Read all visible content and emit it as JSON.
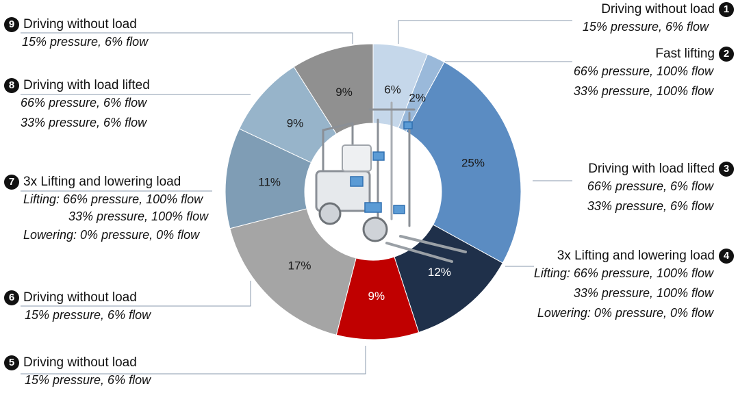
{
  "chart_data": {
    "type": "pie",
    "donut": true,
    "slices": [
      {
        "number": "1",
        "value": 6,
        "label": "6%",
        "color": "#c5d7ea"
      },
      {
        "number": "2",
        "value": 2,
        "label": "2%",
        "color": "#9ab9da"
      },
      {
        "number": "3",
        "value": 25,
        "label": "25%",
        "color": "#5b8cc2"
      },
      {
        "number": "4",
        "value": 12,
        "label": "12%",
        "color": "#1f304a"
      },
      {
        "number": "5",
        "value": 9,
        "label": "9%",
        "color": "#c00000"
      },
      {
        "number": "6",
        "value": 17,
        "label": "17%",
        "color": "#a5a5a5"
      },
      {
        "number": "7",
        "value": 11,
        "label": "11%",
        "color": "#7f9db5"
      },
      {
        "number": "8",
        "value": 9,
        "label": "9%",
        "color": "#97b4ca"
      },
      {
        "number": "9",
        "value": 9,
        "label": "9%",
        "color": "#909090"
      }
    ],
    "center_image": "forklift",
    "callouts": {
      "c1": {
        "badge": "1",
        "title": "Driving without load",
        "lines": [
          "15% pressure, 6% flow"
        ]
      },
      "c2": {
        "badge": "2",
        "title": "Fast lifting",
        "lines": [
          "66% pressure, 100% flow",
          "33% pressure, 100% flow"
        ]
      },
      "c3": {
        "badge": "3",
        "title": "Driving with load lifted",
        "lines": [
          "66% pressure, 6% flow",
          "33% pressure, 6% flow"
        ]
      },
      "c4": {
        "badge": "4",
        "title": "3x Lifting and lowering load",
        "lines": [
          "Lifting: 66% pressure, 100% flow",
          "33% pressure, 100% flow",
          "Lowering: 0% pressure, 0% flow"
        ]
      },
      "c5": {
        "badge": "5",
        "title": "Driving without load",
        "lines": [
          "15% pressure, 6% flow"
        ]
      },
      "c6": {
        "badge": "6",
        "title": "Driving without load",
        "lines": [
          "15% pressure, 6% flow"
        ]
      },
      "c7": {
        "badge": "7",
        "title": "3x Lifting and lowering load",
        "lines": [
          "Lifting: 66% pressure, 100% flow",
          "33% pressure, 100% flow",
          "Lowering: 0% pressure, 0% flow"
        ]
      },
      "c8": {
        "badge": "8",
        "title": "Driving with load lifted",
        "lines": [
          "66% pressure, 6% flow",
          "33% pressure, 6% flow"
        ]
      },
      "c9": {
        "badge": "9",
        "title": "Driving without load",
        "lines": [
          "15% pressure, 6% flow"
        ]
      }
    }
  }
}
